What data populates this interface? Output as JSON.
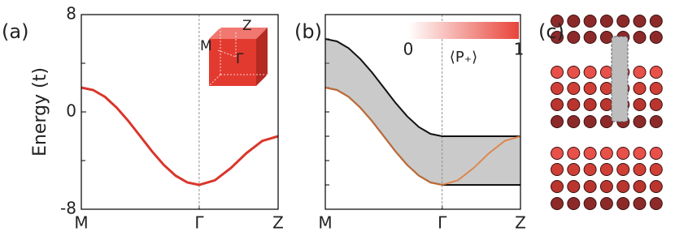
{
  "chart_data": [
    {
      "type": "line",
      "panel_label": "(a)",
      "ylabel": "Energy (t)",
      "xlim": [
        0,
        1.67
      ],
      "ylim": [
        -8,
        8
      ],
      "xticks": [
        {
          "value": 0,
          "label": "M"
        },
        {
          "value": 1,
          "label": "Γ"
        },
        {
          "value": 1.67,
          "label": "Z"
        }
      ],
      "yticks": [
        -8,
        0,
        8
      ],
      "yminor": [
        -4,
        4
      ],
      "dashed_vline": 1,
      "inset_labels": [
        "Z",
        "M",
        "Γ"
      ],
      "series": [
        {
          "color": "#d9362b",
          "x": [
            0,
            0.1,
            0.2,
            0.3,
            0.4,
            0.5,
            0.6,
            0.7,
            0.8,
            0.9,
            1,
            1.134,
            1.268,
            1.402,
            1.536,
            1.67
          ],
          "values": [
            2,
            1.8,
            1.24,
            0.35,
            -0.76,
            -2,
            -3.24,
            -4.35,
            -5.24,
            -5.8,
            -6,
            -5.62,
            -4.62,
            -3.38,
            -2.38,
            -2
          ]
        }
      ]
    },
    {
      "type": "line",
      "panel_label": "(b)",
      "xlim": [
        0,
        1.67
      ],
      "ylim": [
        -8,
        8
      ],
      "xticks": [
        {
          "value": 0,
          "label": "M"
        },
        {
          "value": 1,
          "label": "Γ"
        },
        {
          "value": 1.67,
          "label": "Z"
        }
      ],
      "yminor": [
        -8,
        -6,
        -4,
        -2,
        0,
        2,
        4,
        6,
        8
      ],
      "dashed_vline": 1,
      "colorbar": {
        "label": "⟨P₊⟩",
        "ticks": [
          0,
          1
        ],
        "color": "#e8443a"
      },
      "bulk_fill": "#8a8a8a",
      "series": [
        {
          "color": "#111111",
          "x": [
            0,
            0.1,
            0.2,
            0.3,
            0.4,
            0.5,
            0.6,
            0.7,
            0.8,
            0.9,
            1,
            1.67
          ],
          "values": [
            6,
            5.8,
            5.24,
            4.35,
            3.24,
            2,
            0.76,
            -0.35,
            -1.24,
            -1.8,
            -2,
            -2
          ]
        },
        {
          "color": "#111111",
          "x": [
            0,
            0.1,
            0.2,
            0.3,
            0.4,
            0.5,
            0.6,
            0.7,
            0.8,
            0.9,
            1,
            1.67
          ],
          "values": [
            2,
            1.8,
            1.24,
            0.35,
            -0.76,
            -2,
            -3.24,
            -4.35,
            -5.24,
            -5.8,
            -6,
            -6
          ]
        },
        {
          "color": "#e07b39",
          "x": [
            0,
            0.1,
            0.2,
            0.3,
            0.4,
            0.5,
            0.6,
            0.7,
            0.8,
            0.9,
            1,
            1.134,
            1.268,
            1.402,
            1.536,
            1.67
          ],
          "values": [
            2,
            1.8,
            1.24,
            0.35,
            -0.76,
            -2,
            -3.24,
            -4.35,
            -5.24,
            -5.8,
            -6,
            -5.62,
            -4.62,
            -3.38,
            -2.38,
            -2
          ]
        }
      ]
    }
  ],
  "diagram": {
    "panel_label": "(c)"
  }
}
